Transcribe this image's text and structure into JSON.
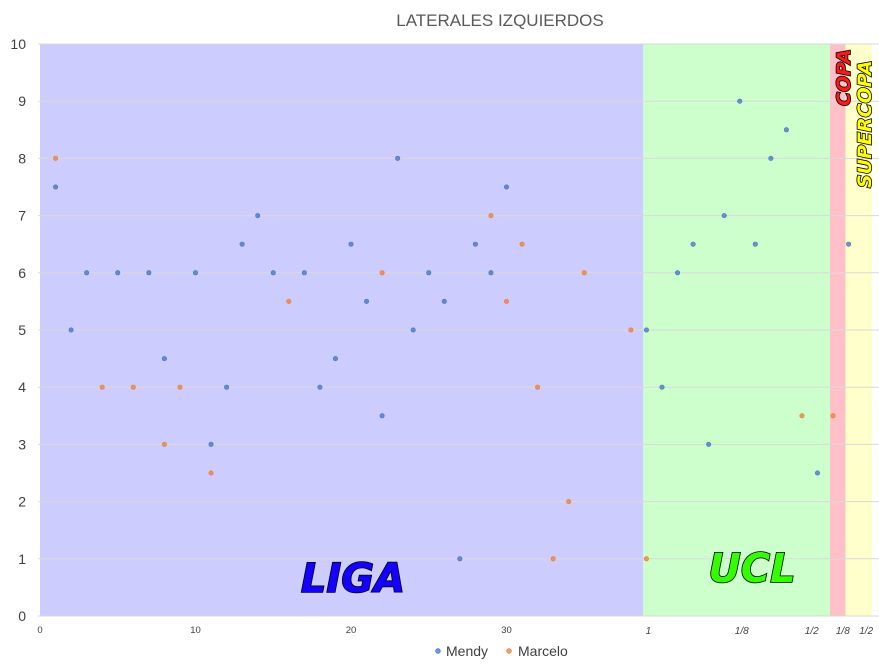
{
  "chart_data": {
    "type": "scatter",
    "title": "LATERALES IZQUIERDOS",
    "xlabel": "",
    "ylabel": "",
    "ylim": [
      0,
      10
    ],
    "xlim": [
      0,
      53
    ],
    "y_ticks": [
      "0",
      "1",
      "2",
      "3",
      "4",
      "5",
      "6",
      "7",
      "8",
      "9",
      "10"
    ],
    "x_ticks": [
      "0",
      "10",
      "20",
      "30"
    ],
    "stage_ticks": [
      {
        "x": 39,
        "label": "1"
      },
      {
        "x": 45,
        "label": "1/8"
      },
      {
        "x": 49.5,
        "label": "1/2"
      },
      {
        "x": 51.5,
        "label": "1/8"
      },
      {
        "x": 53,
        "label": "1/2"
      }
    ],
    "grid": "horizontal",
    "legend_position": "bottom",
    "competition_bands": [
      {
        "label": "LIGA",
        "x_start": 0,
        "x_end": 38.8,
        "fill": "#ccccff",
        "text_color": "#1500ff"
      },
      {
        "label": "UCL",
        "x_start": 38.8,
        "x_end": 50.8,
        "fill": "#ccffcc",
        "text_color": "#33ff00"
      },
      {
        "label": "COPA",
        "x_start": 50.8,
        "x_end": 51.8,
        "fill": "#ffc0c8",
        "text_color": "#ff1a1a"
      },
      {
        "label": "SUPERCOPA",
        "x_start": 51.8,
        "x_end": 53.5,
        "fill": "#ffffcc",
        "text_color": "#ffff00"
      }
    ],
    "series": [
      {
        "name": "Mendy",
        "color": "#4472c4",
        "points": [
          [
            1,
            7.5
          ],
          [
            2,
            5
          ],
          [
            3,
            6
          ],
          [
            5,
            6
          ],
          [
            7,
            6
          ],
          [
            8,
            4.5
          ],
          [
            10,
            6
          ],
          [
            11,
            3
          ],
          [
            12,
            4
          ],
          [
            13,
            6.5
          ],
          [
            14,
            7
          ],
          [
            15,
            6
          ],
          [
            17,
            6
          ],
          [
            18,
            4
          ],
          [
            19,
            4.5
          ],
          [
            20,
            6.5
          ],
          [
            21,
            5.5
          ],
          [
            22,
            3.5
          ],
          [
            23,
            8
          ],
          [
            24,
            5
          ],
          [
            25,
            6
          ],
          [
            26,
            5.5
          ],
          [
            27,
            1
          ],
          [
            28,
            6.5
          ],
          [
            29,
            6
          ],
          [
            30,
            7.5
          ],
          [
            39,
            5
          ],
          [
            40,
            4
          ],
          [
            41,
            6
          ],
          [
            42,
            6.5
          ],
          [
            43,
            3
          ],
          [
            44,
            7
          ],
          [
            45,
            9
          ],
          [
            46,
            6.5
          ],
          [
            47,
            8
          ],
          [
            48,
            8.5
          ],
          [
            50,
            2.5
          ],
          [
            52,
            6.5
          ]
        ]
      },
      {
        "name": "Marcelo",
        "color": "#ed7d31",
        "points": [
          [
            1,
            8
          ],
          [
            4,
            4
          ],
          [
            6,
            4
          ],
          [
            8,
            3
          ],
          [
            9,
            4
          ],
          [
            11,
            2.5
          ],
          [
            16,
            5.5
          ],
          [
            22,
            6
          ],
          [
            29,
            7
          ],
          [
            30,
            5.5
          ],
          [
            31,
            6.5
          ],
          [
            32,
            4
          ],
          [
            33,
            1
          ],
          [
            34,
            2
          ],
          [
            35,
            6
          ],
          [
            38,
            5
          ],
          [
            39,
            1
          ],
          [
            49,
            3.5
          ],
          [
            51,
            3.5
          ]
        ]
      }
    ]
  }
}
